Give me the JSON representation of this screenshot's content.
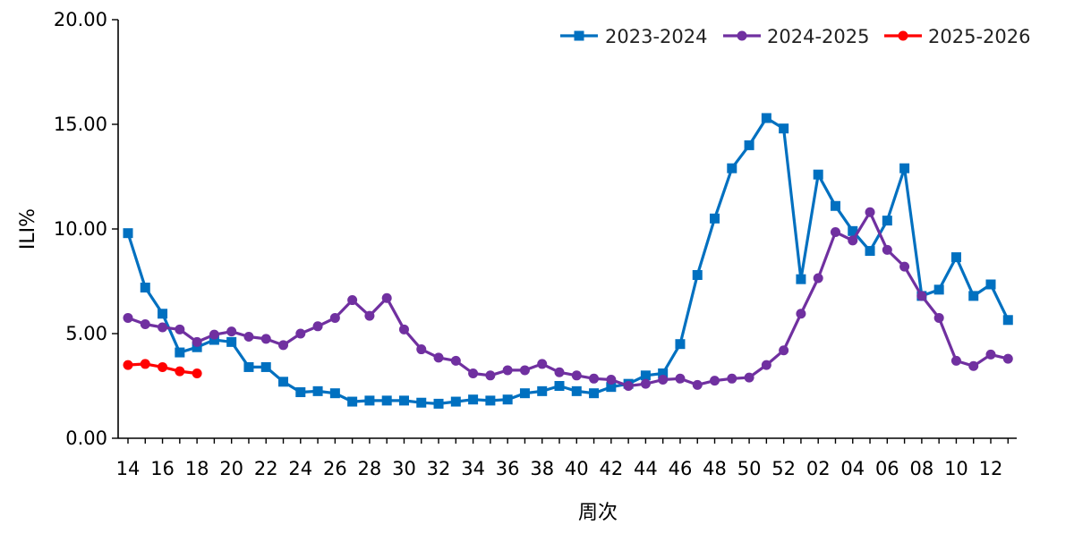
{
  "chart_data": {
    "type": "line",
    "xlabel": "周次",
    "ylabel": "ILI%",
    "ylim": [
      0,
      20
    ],
    "yticks": [
      "0.00",
      "5.00",
      "10.00",
      "15.00",
      "20.00"
    ],
    "xtick_labels": [
      "14",
      "16",
      "18",
      "20",
      "22",
      "24",
      "26",
      "28",
      "30",
      "32",
      "34",
      "36",
      "38",
      "40",
      "42",
      "44",
      "46",
      "48",
      "50",
      "52",
      "02",
      "04",
      "06",
      "08",
      "10",
      "12"
    ],
    "weeks": [
      "14",
      "15",
      "16",
      "17",
      "18",
      "19",
      "20",
      "21",
      "22",
      "23",
      "24",
      "25",
      "26",
      "27",
      "28",
      "29",
      "30",
      "31",
      "32",
      "33",
      "34",
      "35",
      "36",
      "37",
      "38",
      "39",
      "40",
      "41",
      "42",
      "43",
      "44",
      "45",
      "46",
      "47",
      "48",
      "49",
      "50",
      "51",
      "52",
      "01",
      "02",
      "03",
      "04",
      "05",
      "06",
      "07",
      "08",
      "09",
      "10",
      "11",
      "12",
      "13"
    ],
    "legend_position": "top-right",
    "grid": false,
    "series": [
      {
        "name": "2023-2024",
        "color": "#0070C0",
        "marker": "square",
        "values": [
          9.8,
          7.2,
          5.95,
          4.1,
          4.35,
          4.7,
          4.6,
          3.4,
          3.4,
          2.7,
          2.2,
          2.25,
          2.15,
          1.75,
          1.8,
          1.8,
          1.8,
          1.7,
          1.65,
          1.75,
          1.85,
          1.8,
          1.85,
          2.15,
          2.25,
          2.5,
          2.25,
          2.15,
          2.45,
          2.6,
          3.0,
          3.1,
          4.5,
          7.8,
          10.5,
          12.9,
          14.0,
          15.3,
          14.8,
          7.6,
          12.6,
          11.1,
          9.9,
          8.95,
          10.4,
          12.9,
          6.8,
          7.1,
          8.65,
          6.8,
          7.35,
          5.65
        ]
      },
      {
        "name": "2024-2025",
        "color": "#7030A0",
        "marker": "circle",
        "values": [
          5.75,
          5.45,
          5.3,
          5.2,
          4.6,
          4.95,
          5.1,
          4.85,
          4.75,
          4.45,
          5.0,
          5.35,
          5.75,
          6.6,
          5.85,
          6.7,
          5.2,
          4.25,
          3.85,
          3.7,
          3.1,
          3.0,
          3.25,
          3.25,
          3.55,
          3.15,
          3.0,
          2.85,
          2.8,
          2.5,
          2.6,
          2.8,
          2.85,
          2.55,
          2.75,
          2.85,
          2.9,
          3.5,
          4.2,
          5.95,
          7.65,
          9.85,
          9.45,
          10.8,
          9.0,
          8.2,
          6.8,
          5.75,
          3.7,
          3.45,
          4.0,
          3.8
        ]
      },
      {
        "name": "2025-2026",
        "color": "#FF0000",
        "marker": "circle",
        "values": [
          3.5,
          3.55,
          3.4,
          3.2,
          3.1
        ]
      }
    ]
  }
}
